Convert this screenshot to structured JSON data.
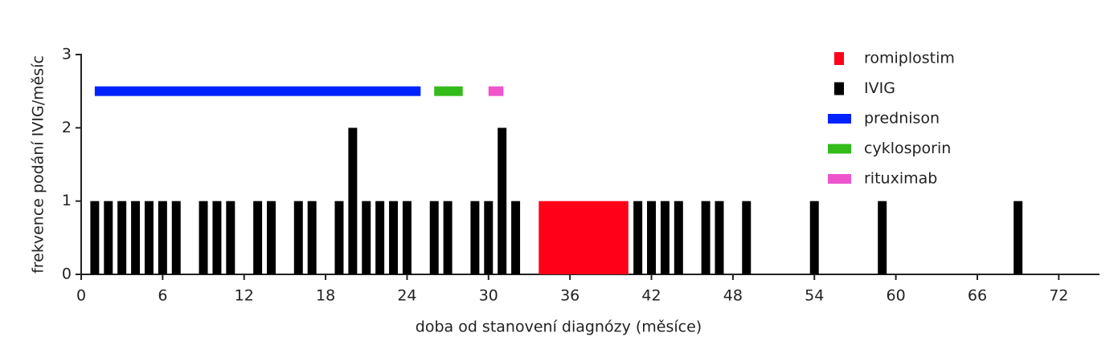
{
  "chart_data": {
    "type": "bar",
    "x_label": "doba od stanovení diagnózy (měsíce)",
    "y_label": "frekvence podání IVIG/měsíc",
    "xlim": [
      0,
      75
    ],
    "ylim": [
      0,
      3
    ],
    "xticks": [
      0,
      6,
      12,
      18,
      24,
      30,
      36,
      42,
      48,
      54,
      60,
      66,
      72
    ],
    "yticks": [
      0,
      1,
      2,
      3
    ],
    "series": [
      {
        "name": "romiplostim",
        "color": "#ff0018",
        "start": 33.7,
        "end": 40.3,
        "value": 1
      },
      {
        "name": "IVIG",
        "color": "#000000",
        "x": [
          1,
          2,
          3,
          4,
          5,
          6,
          7,
          9,
          10,
          11,
          13,
          14,
          16,
          17,
          19,
          20,
          21,
          22,
          23,
          24,
          26,
          27,
          29,
          30,
          31,
          32,
          41,
          42,
          43,
          44,
          46,
          47,
          49,
          54,
          59,
          69
        ],
        "values": [
          1,
          1,
          1,
          1,
          1,
          1,
          1,
          1,
          1,
          1,
          1,
          1,
          1,
          1,
          1,
          2,
          1,
          1,
          1,
          1,
          1,
          1,
          1,
          1,
          2,
          1,
          1,
          1,
          1,
          1,
          1,
          1,
          1,
          1,
          1,
          1
        ]
      },
      {
        "name": "prednison",
        "color": "#0022ff",
        "start": 1,
        "end": 25,
        "value": 2.5
      },
      {
        "name": "cyklosporin",
        "color": "#33bb1a",
        "start": 26,
        "end": 28.1,
        "value": 2.5
      },
      {
        "name": "rituximab",
        "color": "#ee55cc",
        "start": 30,
        "end": 31.1,
        "value": 2.5
      }
    ]
  }
}
